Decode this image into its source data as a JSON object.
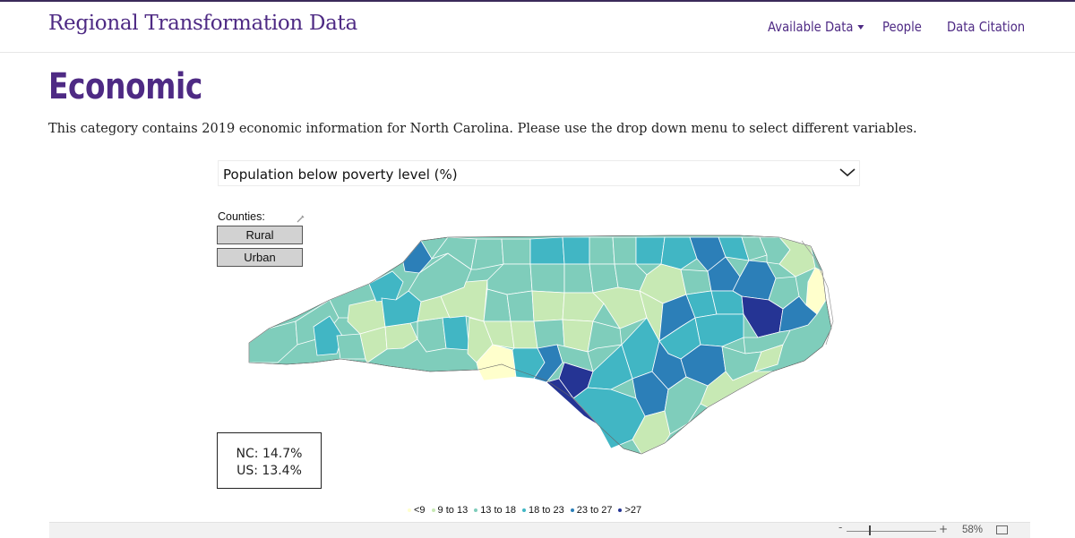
{
  "header": {
    "brand": "Regional Transformation Data",
    "nav": {
      "available_data": "Available Data",
      "people": "People",
      "data_citation": "Data Citation"
    }
  },
  "main": {
    "title": "Economic",
    "description": "This category contains 2019 economic information for North Carolina. Please use the drop down menu to select different variables.",
    "variable_select": {
      "selected": "Population below poverty level (%)"
    },
    "counties_label": "Counties:",
    "buttons": {
      "rural": "Rural",
      "urban": "Urban"
    },
    "stats": {
      "nc": "NC: 14.7%",
      "us": "US: 13.4%"
    },
    "legend": [
      {
        "label": "<9",
        "color": "#ffffcc"
      },
      {
        "label": "9 to 13",
        "color": "#c7e9b4"
      },
      {
        "label": "13 to 18",
        "color": "#7fcdbb"
      },
      {
        "label": "18 to 23",
        "color": "#41b6c4"
      },
      {
        "label": "23 to 27",
        "color": "#2c7fb8"
      },
      {
        "label": ">27",
        "color": "#253494"
      }
    ]
  },
  "toolbar": {
    "zoom_minus": "-",
    "zoom_plus": "+",
    "zoom_level": "58%",
    "zoom_fraction": 0.25
  },
  "icons": {
    "dropdown": "chevron-down-icon",
    "nav_caret": "caret-down-icon",
    "edit": "pencil-icon",
    "fullscreen": "fullscreen-icon"
  }
}
